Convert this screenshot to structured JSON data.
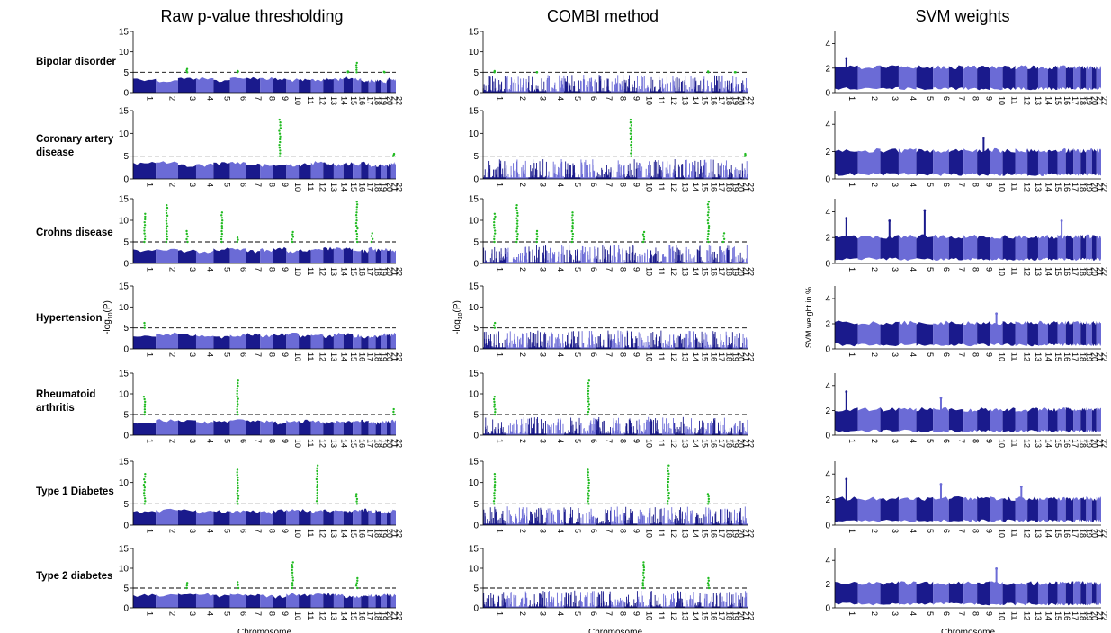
{
  "columns": [
    {
      "title": "Raw p-value thresholding",
      "ylabel": "-log10(P)",
      "xlabel": "Chromosome"
    },
    {
      "title": "COMBI method",
      "ylabel": "-log10(P)",
      "xlabel": "Chromosome"
    },
    {
      "title": "SVM weights",
      "ylabel": "SVM weight in %",
      "xlabel": "Chromosome"
    }
  ],
  "rows": [
    {
      "label": "Bipolar disorder"
    },
    {
      "label": "Coronary artery disease"
    },
    {
      "label": "Crohns disease"
    },
    {
      "label": "Hypertension"
    },
    {
      "label": "Rheumatoid arthritis"
    },
    {
      "label": "Type 1 Diabetes"
    },
    {
      "label": "Type 2 diabetes"
    }
  ],
  "colors": {
    "dark_blue": "#1a1a8c",
    "light_blue": "#6b6bd6",
    "significant": "#22bb22",
    "threshold": "#000000"
  },
  "chart_data": {
    "type": "scatter",
    "subtype": "manhattan",
    "x_categories": [
      "1",
      "2",
      "3",
      "4",
      "5",
      "6",
      "7",
      "8",
      "9",
      "10",
      "11",
      "12",
      "13",
      "14",
      "15",
      "16",
      "17",
      "18",
      "19",
      "20",
      "21",
      "22"
    ],
    "pvalue_yticks": [
      0,
      5,
      10,
      15
    ],
    "pvalue_ylim": [
      0,
      15
    ],
    "svm_yticks": [
      0,
      2,
      4
    ],
    "svm_ylim": [
      0,
      5
    ],
    "threshold": 5,
    "peaks": {
      "Raw p-value thresholding": [
        {
          "disease": "Bipolar disorder",
          "hits": [
            {
              "chr": 3,
              "p": 5.8
            },
            {
              "chr": 6,
              "p": 5.3
            },
            {
              "chr": 15,
              "p": 5.2
            },
            {
              "chr": 16,
              "p": 7.3
            },
            {
              "chr": 20,
              "p": 5.1
            }
          ]
        },
        {
          "disease": "Coronary artery disease",
          "hits": [
            {
              "chr": 9,
              "p": 13.0
            },
            {
              "chr": 22,
              "p": 5.5
            }
          ]
        },
        {
          "disease": "Crohns disease",
          "hits": [
            {
              "chr": 1,
              "p": 11.5
            },
            {
              "chr": 2,
              "p": 13.5
            },
            {
              "chr": 3,
              "p": 7.5
            },
            {
              "chr": 5,
              "p": 11.8
            },
            {
              "chr": 6,
              "p": 6.0
            },
            {
              "chr": 10,
              "p": 7.3
            },
            {
              "chr": 16,
              "p": 14.3
            },
            {
              "chr": 18,
              "p": 7.0
            }
          ]
        },
        {
          "disease": "Hypertension",
          "hits": [
            {
              "chr": 1,
              "p": 6.2
            }
          ]
        },
        {
          "disease": "Rheumatoid arthritis",
          "hits": [
            {
              "chr": 1,
              "p": 9.3
            },
            {
              "chr": 6,
              "p": 13.2
            },
            {
              "chr": 22,
              "p": 6.3
            }
          ]
        },
        {
          "disease": "Type 1 Diabetes",
          "hits": [
            {
              "chr": 1,
              "p": 12.0
            },
            {
              "chr": 6,
              "p": 13.0
            },
            {
              "chr": 12,
              "p": 14.0
            },
            {
              "chr": 16,
              "p": 7.3
            }
          ]
        },
        {
          "disease": "Type 2 diabetes",
          "hits": [
            {
              "chr": 3,
              "p": 6.3
            },
            {
              "chr": 6,
              "p": 6.5
            },
            {
              "chr": 10,
              "p": 11.5
            },
            {
              "chr": 16,
              "p": 7.5
            }
          ]
        }
      ],
      "COMBI method": [
        {
          "disease": "Bipolar disorder",
          "hits": [
            {
              "chr": 1,
              "p": 5.3
            },
            {
              "chr": 3,
              "p": 5.0
            },
            {
              "chr": 16,
              "p": 5.2
            },
            {
              "chr": 20,
              "p": 5.0
            }
          ]
        },
        {
          "disease": "Coronary artery disease",
          "hits": [
            {
              "chr": 9,
              "p": 13.0
            },
            {
              "chr": 22,
              "p": 5.5
            }
          ]
        },
        {
          "disease": "Crohns disease",
          "hits": [
            {
              "chr": 1,
              "p": 11.5
            },
            {
              "chr": 2,
              "p": 13.5
            },
            {
              "chr": 3,
              "p": 7.5
            },
            {
              "chr": 5,
              "p": 11.8
            },
            {
              "chr": 10,
              "p": 7.3
            },
            {
              "chr": 16,
              "p": 14.3
            },
            {
              "chr": 18,
              "p": 7.0
            }
          ]
        },
        {
          "disease": "Hypertension",
          "hits": [
            {
              "chr": 1,
              "p": 6.2
            }
          ]
        },
        {
          "disease": "Rheumatoid arthritis",
          "hits": [
            {
              "chr": 1,
              "p": 9.3
            },
            {
              "chr": 6,
              "p": 13.2
            }
          ]
        },
        {
          "disease": "Type 1 Diabetes",
          "hits": [
            {
              "chr": 1,
              "p": 12.0
            },
            {
              "chr": 6,
              "p": 13.0
            },
            {
              "chr": 12,
              "p": 14.0
            },
            {
              "chr": 16,
              "p": 7.3
            }
          ]
        },
        {
          "disease": "Type 2 diabetes",
          "hits": [
            {
              "chr": 10,
              "p": 11.5
            },
            {
              "chr": 16,
              "p": 7.5
            }
          ]
        }
      ],
      "SVM weights": [
        {
          "disease": "Bipolar disorder",
          "hits": [
            {
              "chr": 1,
              "w": 2.8
            }
          ]
        },
        {
          "disease": "Coronary artery disease",
          "hits": [
            {
              "chr": 9,
              "w": 3.0
            }
          ]
        },
        {
          "disease": "Crohns disease",
          "hits": [
            {
              "chr": 1,
              "w": 3.5
            },
            {
              "chr": 3,
              "w": 3.3
            },
            {
              "chr": 5,
              "w": 4.1
            },
            {
              "chr": 16,
              "w": 3.3
            }
          ]
        },
        {
          "disease": "Hypertension",
          "hits": [
            {
              "chr": 10,
              "w": 2.8
            }
          ]
        },
        {
          "disease": "Rheumatoid arthritis",
          "hits": [
            {
              "chr": 1,
              "w": 3.5
            },
            {
              "chr": 6,
              "w": 3.0
            }
          ]
        },
        {
          "disease": "Type 1 Diabetes",
          "hits": [
            {
              "chr": 1,
              "w": 3.6
            },
            {
              "chr": 6,
              "w": 3.2
            },
            {
              "chr": 12,
              "w": 3.0
            }
          ]
        },
        {
          "disease": "Type 2 diabetes",
          "hits": [
            {
              "chr": 10,
              "w": 3.3
            }
          ]
        }
      ]
    }
  }
}
